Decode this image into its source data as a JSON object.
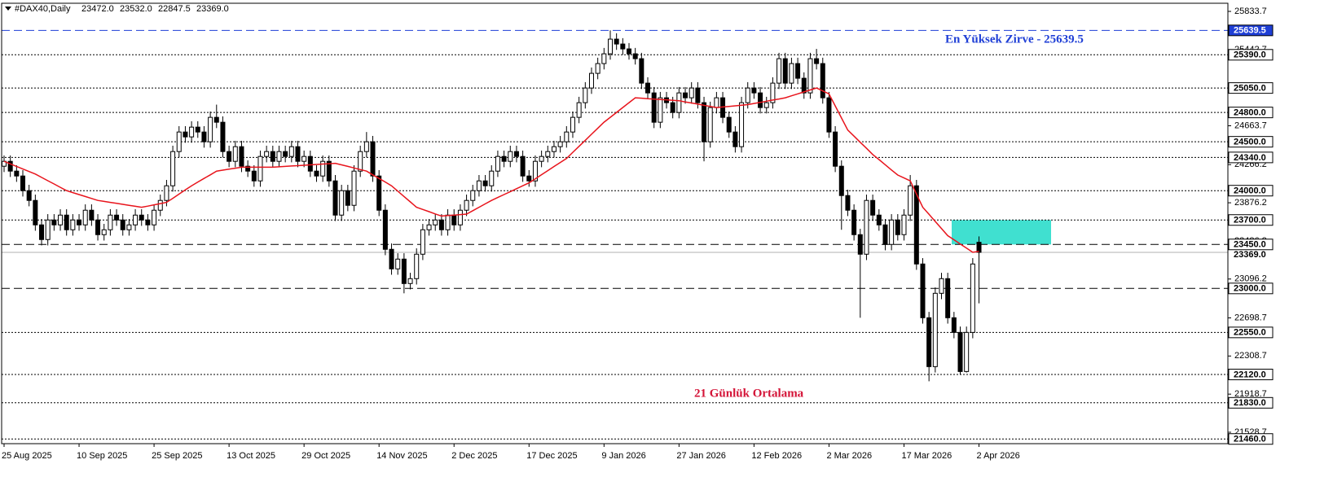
{
  "chart_data": {
    "type": "candlestick",
    "header": {
      "symbol": "#DAX40,Daily",
      "ohlc": [
        "23472.0",
        "23532.0",
        "22847.5",
        "23369.0"
      ]
    },
    "categories": [
      "25 Aug 2025",
      null,
      null,
      null,
      null,
      null,
      null,
      null,
      null,
      null,
      null,
      null,
      "10 Sep 2025",
      null,
      null,
      null,
      null,
      null,
      null,
      null,
      null,
      null,
      null,
      null,
      "25 Sep 2025",
      null,
      null,
      null,
      null,
      null,
      null,
      null,
      null,
      null,
      null,
      null,
      "13 Oct 2025",
      null,
      null,
      null,
      null,
      null,
      null,
      null,
      null,
      null,
      null,
      null,
      "29 Oct 2025",
      null,
      null,
      null,
      null,
      null,
      null,
      null,
      null,
      null,
      null,
      null,
      "14 Nov 2025",
      null,
      null,
      null,
      null,
      null,
      null,
      null,
      null,
      null,
      null,
      null,
      "2 Dec 2025",
      null,
      null,
      null,
      null,
      null,
      null,
      null,
      null,
      null,
      null,
      null,
      "17 Dec 2025",
      null,
      null,
      null,
      null,
      null,
      null,
      null,
      null,
      null,
      null,
      null,
      "9 Jan 2026",
      null,
      null,
      null,
      null,
      null,
      null,
      null,
      null,
      null,
      null,
      null,
      "27 Jan 2026",
      null,
      null,
      null,
      null,
      null,
      null,
      null,
      null,
      null,
      null,
      null,
      "12 Feb 2026",
      null,
      null,
      null,
      null,
      null,
      null,
      null,
      null,
      null,
      null,
      null,
      "2 Mar 2026",
      null,
      null,
      null,
      null,
      null,
      null,
      null,
      null,
      null,
      null,
      null,
      "17 Mar 2026",
      null,
      null,
      null,
      null,
      null,
      null,
      null,
      null,
      null,
      null,
      null,
      "2 Apr 2026"
    ],
    "candles": {
      "up_color": "#ffffff",
      "down_color": "#000000",
      "outline_color": "#000000",
      "open": [
        24250,
        24300,
        24200,
        24150,
        24000,
        23900,
        23650,
        23500,
        23700,
        23650,
        23750,
        23600,
        23700,
        23650,
        23800,
        23700,
        23550,
        23600,
        23750,
        23700,
        23600,
        23650,
        23750,
        23700,
        23650,
        23800,
        23900,
        24050,
        24400,
        24600,
        24550,
        24650,
        24600,
        24500,
        24750,
        24700,
        24400,
        24300,
        24450,
        24250,
        24200,
        24100,
        24350,
        24400,
        24300,
        24400,
        24350,
        24450,
        24300,
        24350,
        24200,
        24150,
        24300,
        24100,
        23750,
        24000,
        23850,
        24200,
        24400,
        24500,
        24150,
        23800,
        23400,
        23200,
        23300,
        23050,
        23100,
        23350,
        23600,
        23650,
        23700,
        23600,
        23750,
        23650,
        23800,
        23900,
        24000,
        24100,
        24050,
        24200,
        24350,
        24300,
        24400,
        24350,
        24150,
        24100,
        24300,
        24350,
        24400,
        24450,
        24500,
        24600,
        24750,
        24900,
        25050,
        25200,
        25300,
        25400,
        25550,
        25500,
        25450,
        25400,
        25350,
        25100,
        25000,
        24700,
        24950,
        24900,
        24800,
        25000,
        24950,
        25050,
        24900,
        24500,
        24850,
        24950,
        24750,
        24600,
        24450,
        24900,
        25050,
        25000,
        24850,
        24900,
        25100,
        25350,
        25100,
        25300,
        25150,
        25000,
        25350,
        25300,
        24950,
        24600,
        24250,
        23950,
        23800,
        23550,
        23350,
        23900,
        23750,
        23650,
        23450,
        23700,
        23550,
        23750,
        24050,
        23250,
        22700,
        22200,
        22950,
        23100,
        22700,
        22550,
        22150,
        22550,
        23472
      ],
      "high": [
        24360,
        24360,
        24260,
        24210,
        24060,
        23960,
        23710,
        23760,
        23760,
        23810,
        23810,
        23760,
        23760,
        23860,
        23860,
        23760,
        23660,
        23810,
        23810,
        23760,
        23710,
        23810,
        23810,
        23760,
        23860,
        23960,
        24110,
        24460,
        24660,
        24660,
        24710,
        24710,
        24660,
        24810,
        24880,
        24760,
        24460,
        24510,
        24510,
        24310,
        24260,
        24410,
        24460,
        24460,
        24460,
        24460,
        24510,
        24510,
        24410,
        24410,
        24260,
        24360,
        24360,
        24160,
        24060,
        24060,
        24260,
        24460,
        24600,
        24560,
        24210,
        23860,
        23460,
        23360,
        23360,
        23160,
        23410,
        23660,
        23710,
        23760,
        23760,
        23810,
        23810,
        23860,
        23960,
        24060,
        24160,
        24160,
        24260,
        24410,
        24410,
        24460,
        24460,
        24410,
        24210,
        24360,
        24410,
        24460,
        24510,
        24560,
        24660,
        24810,
        24960,
        25110,
        25260,
        25360,
        25460,
        25639.5,
        25610,
        25560,
        25510,
        25460,
        25410,
        25160,
        25060,
        25010,
        25010,
        24960,
        25060,
        25060,
        25110,
        25110,
        24960,
        24910,
        25010,
        25010,
        24810,
        24660,
        24960,
        25110,
        25110,
        25060,
        24960,
        25160,
        25410,
        25410,
        25360,
        25360,
        25210,
        25410,
        25450,
        25360,
        25010,
        24660,
        24310,
        24010,
        23860,
        23610,
        23960,
        23960,
        23810,
        23710,
        23760,
        23760,
        23810,
        24160,
        24110,
        23310,
        22760,
        23010,
        23160,
        23160,
        22760,
        22610,
        22610,
        23310,
        23532
      ],
      "low": [
        24190,
        24140,
        24090,
        23940,
        23840,
        23590,
        23440,
        23440,
        23590,
        23590,
        23540,
        23540,
        23590,
        23590,
        23640,
        23490,
        23490,
        23540,
        23640,
        23540,
        23540,
        23590,
        23640,
        23590,
        23590,
        23740,
        23840,
        23990,
        24340,
        24490,
        24490,
        24540,
        24440,
        24440,
        24640,
        24340,
        24240,
        24240,
        24190,
        24140,
        24040,
        24040,
        24290,
        24240,
        24240,
        24290,
        24290,
        24240,
        24240,
        24140,
        24090,
        24090,
        24040,
        23690,
        23690,
        23790,
        23790,
        24140,
        24340,
        24090,
        23740,
        23340,
        23140,
        23140,
        22950,
        22990,
        23040,
        23290,
        23540,
        23590,
        23540,
        23540,
        23590,
        23590,
        23740,
        23840,
        23940,
        23990,
        23990,
        24140,
        24240,
        24240,
        24290,
        24090,
        24040,
        24040,
        24240,
        24290,
        24340,
        24390,
        24440,
        24540,
        24690,
        24840,
        24990,
        25140,
        25240,
        25340,
        25440,
        25390,
        25340,
        25290,
        25040,
        24940,
        24640,
        24640,
        24840,
        24740,
        24740,
        24890,
        24890,
        24840,
        24300,
        24440,
        24790,
        24690,
        24540,
        24390,
        24390,
        24840,
        24940,
        24790,
        24790,
        24840,
        25040,
        25040,
        25040,
        25090,
        24940,
        24940,
        25240,
        24890,
        24540,
        24190,
        23600,
        23740,
        23490,
        22700,
        23290,
        23690,
        23590,
        23390,
        23390,
        23490,
        23490,
        23690,
        23190,
        22640,
        22050,
        22140,
        22890,
        22640,
        22490,
        22120,
        22140,
        22490,
        22847.5
      ],
      "close": [
        24300,
        24200,
        24150,
        24000,
        23900,
        23650,
        23500,
        23700,
        23650,
        23750,
        23600,
        23700,
        23650,
        23800,
        23700,
        23550,
        23600,
        23750,
        23700,
        23600,
        23650,
        23750,
        23700,
        23650,
        23800,
        23900,
        24050,
        24400,
        24600,
        24550,
        24650,
        24600,
        24500,
        24750,
        24700,
        24400,
        24300,
        24450,
        24250,
        24200,
        24100,
        24350,
        24400,
        24300,
        24400,
        24350,
        24450,
        24300,
        24350,
        24200,
        24150,
        24300,
        24100,
        23750,
        24000,
        23850,
        24200,
        24400,
        24500,
        24150,
        23800,
        23400,
        23200,
        23300,
        23050,
        23100,
        23350,
        23600,
        23650,
        23700,
        23600,
        23750,
        23650,
        23800,
        23900,
        24000,
        24100,
        24050,
        24200,
        24350,
        24300,
        24400,
        24350,
        24150,
        24100,
        24300,
        24350,
        24400,
        24450,
        24500,
        24600,
        24750,
        24900,
        25050,
        25200,
        25300,
        25400,
        25550,
        25500,
        25450,
        25400,
        25350,
        25100,
        25000,
        24700,
        24950,
        24900,
        24800,
        25000,
        24950,
        25050,
        24900,
        24500,
        24850,
        24950,
        24750,
        24600,
        24450,
        24900,
        25050,
        25000,
        24850,
        24900,
        25100,
        25350,
        25100,
        25300,
        25150,
        25000,
        25350,
        25300,
        24950,
        24600,
        24250,
        23950,
        23800,
        23550,
        23350,
        23900,
        23750,
        23650,
        23450,
        23700,
        23550,
        23750,
        24050,
        23250,
        22700,
        22200,
        22950,
        23100,
        22700,
        22550,
        22150,
        22550,
        23250,
        23369
      ]
    },
    "moving_average": {
      "color": "#e8141c",
      "values": [
        24300,
        24274,
        24248,
        24222,
        24196,
        24170,
        24136,
        24102,
        24068,
        24034,
        24000,
        23980,
        23960,
        23940,
        23920,
        23900,
        23890,
        23880,
        23870,
        23860,
        23850,
        23840,
        23830,
        23842,
        23855,
        23868,
        23880,
        23922,
        23965,
        24008,
        24050,
        24088,
        24125,
        24162,
        24200,
        24210,
        24220,
        24230,
        24240,
        24240,
        24240,
        24240,
        24240,
        24240,
        24244,
        24248,
        24252,
        24256,
        24260,
        24264,
        24268,
        24272,
        24276,
        24280,
        24264,
        24248,
        24232,
        24216,
        24200,
        24162,
        24125,
        24088,
        24050,
        23995,
        23940,
        23885,
        23830,
        23808,
        23785,
        23762,
        23740,
        23745,
        23750,
        23755,
        23760,
        23795,
        23830,
        23865,
        23900,
        23930,
        23960,
        23990,
        24020,
        24050,
        24080,
        24122,
        24163,
        24205,
        24247,
        24288,
        24330,
        24392,
        24453,
        24515,
        24577,
        24638,
        24700,
        24750,
        24800,
        24850,
        24900,
        24950,
        24946,
        24941,
        24937,
        24933,
        24929,
        24924,
        24920,
        24908,
        24897,
        24885,
        24873,
        24862,
        24850,
        24856,
        24862,
        24868,
        24874,
        24880,
        24892,
        24903,
        24915,
        24927,
        24938,
        24950,
        24970,
        24990,
        25010,
        25030,
        25050,
        25020,
        24990,
        24867,
        24743,
        24620,
        24558,
        24495,
        24433,
        24370,
        24318,
        24265,
        24212,
        24160,
        24130,
        24100,
        23965,
        23830,
        23758,
        23685,
        23612,
        23540,
        23498,
        23455,
        23412,
        23370,
        23380
      ]
    },
    "levels": [
      {
        "value": 25639.5,
        "label": "25639.5",
        "dash": "dashed",
        "color": "#1f3fd6"
      },
      {
        "value": 25390,
        "label": "25390.0",
        "dash": "dotted",
        "color": "#000000"
      },
      {
        "value": 25050,
        "label": "25050.0",
        "dash": "dotted",
        "color": "#000000"
      },
      {
        "value": 24800,
        "label": "24800.0",
        "dash": "dotted",
        "color": "#000000"
      },
      {
        "value": 24500,
        "label": "24500.0",
        "dash": "dotted",
        "color": "#000000"
      },
      {
        "value": 24340,
        "label": "24340.0",
        "dash": "dotted",
        "color": "#000000"
      },
      {
        "value": 24000,
        "label": "24000.0",
        "dash": "dotted",
        "color": "#000000"
      },
      {
        "value": 23700,
        "label": "23700.0",
        "dash": "dotted",
        "color": "#000000"
      },
      {
        "value": 23450,
        "label": "23450.0",
        "dash": "dashed",
        "color": "#000000"
      },
      {
        "value": 23000,
        "label": "23000.0",
        "dash": "dashed",
        "color": "#000000"
      },
      {
        "value": 22550,
        "label": "22550.0",
        "dash": "dotted",
        "color": "#000000"
      },
      {
        "value": 22120,
        "label": "22120.0",
        "dash": "dotted",
        "color": "#000000"
      },
      {
        "value": 21830,
        "label": "21830.0",
        "dash": "dotted",
        "color": "#000000"
      },
      {
        "value": 21460,
        "label": "21460.0",
        "dash": "dotted",
        "color": "#000000"
      }
    ],
    "last_price": {
      "value": 23369,
      "label": "23369.0",
      "color": "#b0b0b0"
    },
    "zone": {
      "from": 23450,
      "to": 23700,
      "color": "#40e0d0"
    },
    "annotations": [
      {
        "text": "En Yüksek Zirve - 25639.5",
        "color": "#1f3fd6"
      },
      {
        "text": "21 Günlük Ortalama",
        "color": "#d41438"
      }
    ],
    "ylim": [
      21412,
      25917
    ],
    "yticks": [
      25833.7,
      25442.7,
      24663.7,
      24266.2,
      23876.2,
      23486.2,
      23096.2,
      22698.7,
      22308.7,
      21918.7,
      21528.7
    ]
  }
}
